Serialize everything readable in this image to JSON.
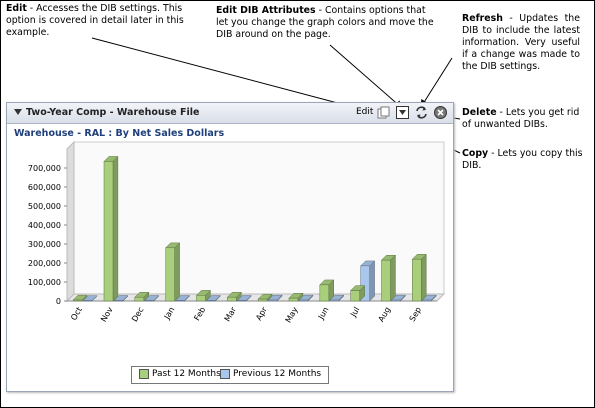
{
  "callouts": {
    "edit": {
      "title": "Edit",
      "text": "- Accesses the DIB settings. This option is covered in detail later in this example."
    },
    "attributes": {
      "title": "Edit DIB Attributes",
      "text": "- Contains options that let you change the graph colors and move the DIB around on the page."
    },
    "refresh": {
      "title": "Refresh",
      "text": "- Updates the DIB to include the latest information. Very useful if a change was made to the DIB settings."
    },
    "delete": {
      "title": "Delete",
      "text": "- Lets you get rid of unwanted DIBs."
    },
    "copy": {
      "title": "Copy",
      "text": "- Lets you copy this DIB."
    }
  },
  "dib": {
    "title": "Two-Year Comp - Warehouse File",
    "edit_label": "Edit",
    "subtitle": "Warehouse - RAL : By Net Sales Dollars",
    "icons": [
      "collapse-arrow-icon",
      "copy-icon",
      "attributes-dropdown-icon",
      "refresh-icon",
      "close-icon"
    ]
  },
  "colors": {
    "past": "#a9cf7c",
    "previous": "#a9c6ec",
    "title_blue": "#1f3f7a"
  },
  "chart_data": {
    "type": "bar",
    "categories": [
      "Oct",
      "Nov",
      "Dec",
      "Jan",
      "Feb",
      "Mar",
      "Apr",
      "May",
      "Jun",
      "Jul",
      "Aug",
      "Sep"
    ],
    "series": [
      {
        "name": "Past 12 Months",
        "values": [
          5000,
          735000,
          20000,
          280000,
          30000,
          20000,
          10000,
          15000,
          85000,
          55000,
          215000,
          220000
        ]
      },
      {
        "name": "Previous 12 Months",
        "values": [
          2000,
          3000,
          3000,
          3000,
          3000,
          3000,
          5000,
          5000,
          5000,
          185000,
          5000,
          5000
        ]
      }
    ],
    "y_ticks": [
      "0",
      "100,000",
      "200,000",
      "300,000",
      "400,000",
      "500,000",
      "600,000",
      "700,000"
    ],
    "ylim": [
      0,
      800000
    ],
    "legend_position": "bottom"
  }
}
